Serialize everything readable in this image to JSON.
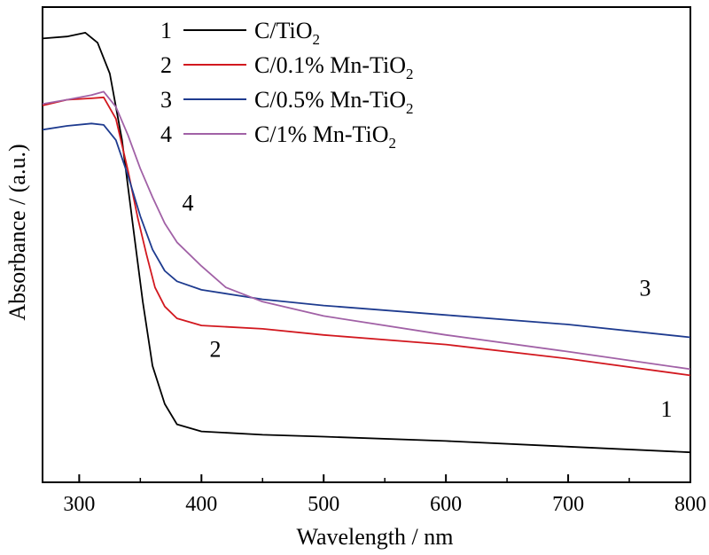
{
  "chart_data": {
    "type": "line",
    "xlabel": "Wavelength / nm",
    "ylabel": "Absorbance / (a.u.)",
    "xlim": [
      270,
      800
    ],
    "ylim": [
      0,
      1
    ],
    "x_ticks": [
      300,
      400,
      500,
      600,
      700,
      800
    ],
    "y_tick_labels": false,
    "legend_position": "top-left",
    "series": [
      {
        "id": "1",
        "name": "C/TiO2",
        "label_main": "C/TiO",
        "label_sub": "2",
        "label_tail": "",
        "color": "#000000",
        "curve_label": "1",
        "points": [
          [
            270,
            0.934
          ],
          [
            290,
            0.938
          ],
          [
            305,
            0.946
          ],
          [
            315,
            0.925
          ],
          [
            325,
            0.86
          ],
          [
            335,
            0.72
          ],
          [
            345,
            0.52
          ],
          [
            352,
            0.38
          ],
          [
            360,
            0.245
          ],
          [
            370,
            0.165
          ],
          [
            380,
            0.122
          ],
          [
            400,
            0.107
          ],
          [
            450,
            0.1
          ],
          [
            500,
            0.096
          ],
          [
            600,
            0.087
          ],
          [
            700,
            0.075
          ],
          [
            800,
            0.063
          ]
        ]
      },
      {
        "id": "2",
        "name": "C/0.1% Mn-TiO2",
        "label_main": "C/0.1% Mn-TiO",
        "label_sub": "2",
        "label_tail": "",
        "color": "#d2181f",
        "curve_label": "2",
        "points": [
          [
            270,
            0.793
          ],
          [
            290,
            0.805
          ],
          [
            310,
            0.808
          ],
          [
            320,
            0.81
          ],
          [
            330,
            0.765
          ],
          [
            340,
            0.655
          ],
          [
            348,
            0.555
          ],
          [
            355,
            0.48
          ],
          [
            362,
            0.41
          ],
          [
            370,
            0.37
          ],
          [
            380,
            0.345
          ],
          [
            400,
            0.33
          ],
          [
            450,
            0.323
          ],
          [
            500,
            0.31
          ],
          [
            600,
            0.29
          ],
          [
            700,
            0.26
          ],
          [
            800,
            0.225
          ]
        ]
      },
      {
        "id": "3",
        "name": "C/0.5% Mn-TiO2",
        "label_main": "C/0.5% Mn-TiO",
        "label_sub": "2",
        "label_tail": "",
        "color": "#1e3b8f",
        "curve_label": "3",
        "points": [
          [
            270,
            0.742
          ],
          [
            290,
            0.75
          ],
          [
            310,
            0.755
          ],
          [
            320,
            0.752
          ],
          [
            330,
            0.72
          ],
          [
            340,
            0.645
          ],
          [
            350,
            0.56
          ],
          [
            360,
            0.49
          ],
          [
            370,
            0.445
          ],
          [
            380,
            0.423
          ],
          [
            400,
            0.405
          ],
          [
            450,
            0.385
          ],
          [
            500,
            0.372
          ],
          [
            600,
            0.352
          ],
          [
            700,
            0.332
          ],
          [
            800,
            0.305
          ]
        ]
      },
      {
        "id": "4",
        "name": "C/1% Mn-TiO2",
        "label_main": "C/1% Mn-TiO",
        "label_sub": "2",
        "label_tail": "",
        "color": "#a161a6",
        "curve_label": "4",
        "points": [
          [
            270,
            0.796
          ],
          [
            290,
            0.805
          ],
          [
            310,
            0.815
          ],
          [
            320,
            0.822
          ],
          [
            330,
            0.79
          ],
          [
            340,
            0.73
          ],
          [
            350,
            0.66
          ],
          [
            360,
            0.6
          ],
          [
            370,
            0.545
          ],
          [
            380,
            0.505
          ],
          [
            400,
            0.455
          ],
          [
            420,
            0.41
          ],
          [
            450,
            0.38
          ],
          [
            500,
            0.35
          ],
          [
            600,
            0.31
          ],
          [
            700,
            0.275
          ],
          [
            800,
            0.238
          ]
        ]
      }
    ]
  }
}
